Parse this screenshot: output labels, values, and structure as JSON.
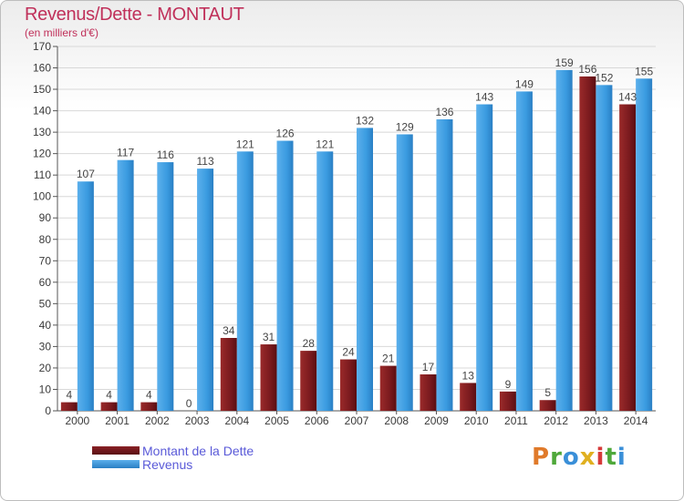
{
  "title": "Revenus/Dette - MONTAUT",
  "subtitle": "(en milliers d'€)",
  "logo": "Proxiti",
  "colors": {
    "dette": "#7a1a1e",
    "revenus": "#3a9be0",
    "title": "#c0305a"
  },
  "legend": {
    "position": "bottom-left",
    "items": [
      {
        "label": "Montant de la Dette"
      },
      {
        "label": "Revenus"
      }
    ]
  },
  "chart_data": {
    "type": "bar",
    "title": "Revenus/Dette - MONTAUT",
    "subtitle": "(en milliers d'€)",
    "categories": [
      "2000",
      "2001",
      "2002",
      "2003",
      "2004",
      "2005",
      "2006",
      "2007",
      "2008",
      "2009",
      "2010",
      "2011",
      "2012",
      "2013",
      "2014"
    ],
    "series": [
      {
        "name": "Montant de la Dette",
        "values": [
          4,
          4,
          4,
          0,
          34,
          31,
          28,
          24,
          21,
          17,
          13,
          9,
          5,
          156,
          143
        ]
      },
      {
        "name": "Revenus",
        "values": [
          107,
          117,
          116,
          113,
          121,
          126,
          121,
          132,
          129,
          136,
          143,
          149,
          159,
          152,
          155
        ]
      }
    ],
    "xlabel": "",
    "ylabel": "",
    "ylim": [
      0,
      170
    ],
    "yticks": [
      0,
      10,
      20,
      30,
      40,
      50,
      60,
      70,
      80,
      90,
      100,
      110,
      120,
      130,
      140,
      150,
      160,
      170
    ],
    "grid": true,
    "legend_position": "bottom-left"
  }
}
